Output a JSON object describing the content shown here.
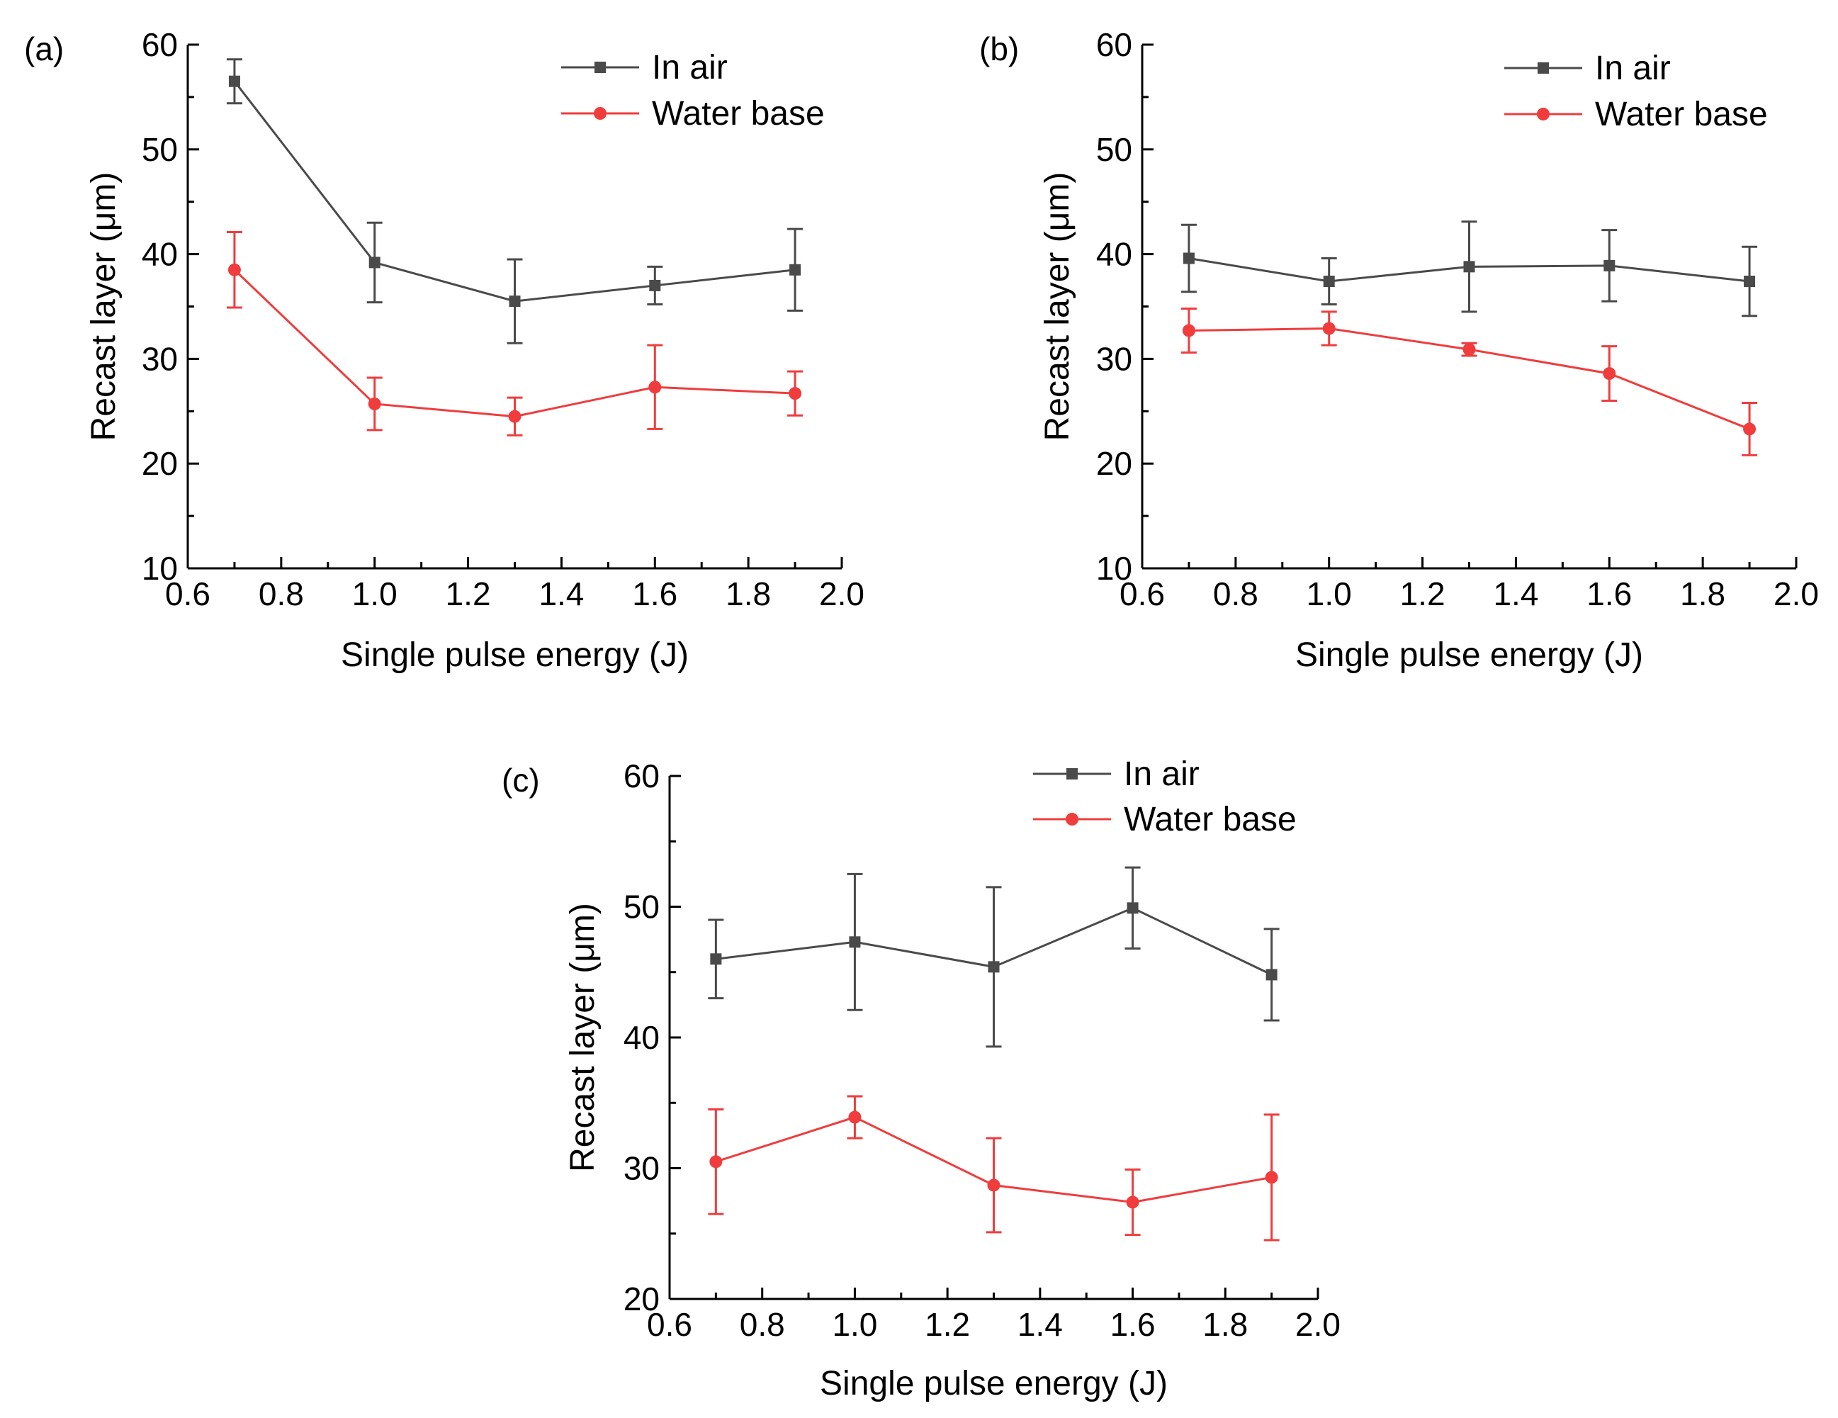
{
  "colors": {
    "air": "#4a4a4a",
    "water": "#f03c3c",
    "axis": "#000000"
  },
  "chart_data": [
    {
      "type": "line",
      "panel_label": "(a)",
      "xlabel": "Single pulse energy (J)",
      "ylabel": "Recast layer (μm)",
      "xlim": [
        0.6,
        2.0
      ],
      "ylim": [
        10,
        60
      ],
      "xticks": [
        0.6,
        0.8,
        1.0,
        1.2,
        1.4,
        1.6,
        1.8,
        2.0
      ],
      "xtick_labels": [
        "0.6",
        "0.8",
        "1.0",
        "1.2",
        "1.4",
        "1.6",
        "1.8",
        "2.0"
      ],
      "yticks": [
        10,
        20,
        30,
        40,
        50,
        60
      ],
      "ytick_labels": [
        "10",
        "20",
        "30",
        "40",
        "50",
        "60"
      ],
      "x": [
        0.7,
        1.0,
        1.3,
        1.6,
        1.9
      ],
      "series": [
        {
          "name": "In air",
          "marker": "square",
          "values": [
            56.5,
            39.2,
            35.5,
            37.0,
            38.5
          ],
          "errors": [
            2.1,
            3.8,
            4.0,
            1.8,
            3.9
          ]
        },
        {
          "name": "Water base",
          "marker": "circle",
          "values": [
            38.5,
            25.7,
            24.5,
            27.3,
            26.7
          ],
          "errors": [
            3.6,
            2.5,
            1.8,
            4.0,
            2.1
          ]
        }
      ]
    },
    {
      "type": "line",
      "panel_label": "(b)",
      "xlabel": "Single pulse energy (J)",
      "ylabel": "Recast layer (μm)",
      "xlim": [
        0.6,
        2.0
      ],
      "ylim": [
        10,
        60
      ],
      "xticks": [
        0.6,
        0.8,
        1.0,
        1.2,
        1.4,
        1.6,
        1.8,
        2.0
      ],
      "xtick_labels": [
        "0.6",
        "0.8",
        "1.0",
        "1.2",
        "1.4",
        "1.6",
        "1.8",
        "2.0"
      ],
      "yticks": [
        10,
        20,
        30,
        40,
        50,
        60
      ],
      "ytick_labels": [
        "10",
        "20",
        "30",
        "40",
        "50",
        "60"
      ],
      "x": [
        0.7,
        1.0,
        1.3,
        1.6,
        1.9
      ],
      "series": [
        {
          "name": "In air",
          "marker": "square",
          "values": [
            39.6,
            37.4,
            38.8,
            38.9,
            37.4
          ],
          "errors": [
            3.2,
            2.2,
            4.3,
            3.4,
            3.3
          ]
        },
        {
          "name": "Water base",
          "marker": "circle",
          "values": [
            32.7,
            32.9,
            30.9,
            28.6,
            23.3
          ],
          "errors": [
            2.1,
            1.6,
            0.6,
            2.6,
            2.5
          ]
        }
      ]
    },
    {
      "type": "line",
      "panel_label": "(c)",
      "xlabel": "Single pulse energy (J)",
      "ylabel": "Recast layer (μm)",
      "xlim": [
        0.6,
        2.0
      ],
      "ylim": [
        20,
        60
      ],
      "xticks": [
        0.6,
        0.8,
        1.0,
        1.2,
        1.4,
        1.6,
        1.8,
        2.0
      ],
      "xtick_labels": [
        "0.6",
        "0.8",
        "1.0",
        "1.2",
        "1.4",
        "1.6",
        "1.8",
        "2.0"
      ],
      "yticks": [
        20,
        30,
        40,
        50,
        60
      ],
      "ytick_labels": [
        "20",
        "30",
        "40",
        "50",
        "60"
      ],
      "x": [
        0.7,
        1.0,
        1.3,
        1.6,
        1.9
      ],
      "series": [
        {
          "name": "In air",
          "marker": "square",
          "values": [
            46.0,
            47.3,
            45.4,
            49.9,
            44.8
          ],
          "errors": [
            3.0,
            5.2,
            6.1,
            3.1,
            3.5
          ]
        },
        {
          "name": "Water base",
          "marker": "circle",
          "values": [
            30.5,
            33.9,
            28.7,
            27.4,
            29.3
          ],
          "errors": [
            4.0,
            1.6,
            3.6,
            2.5,
            4.8
          ]
        }
      ]
    }
  ]
}
